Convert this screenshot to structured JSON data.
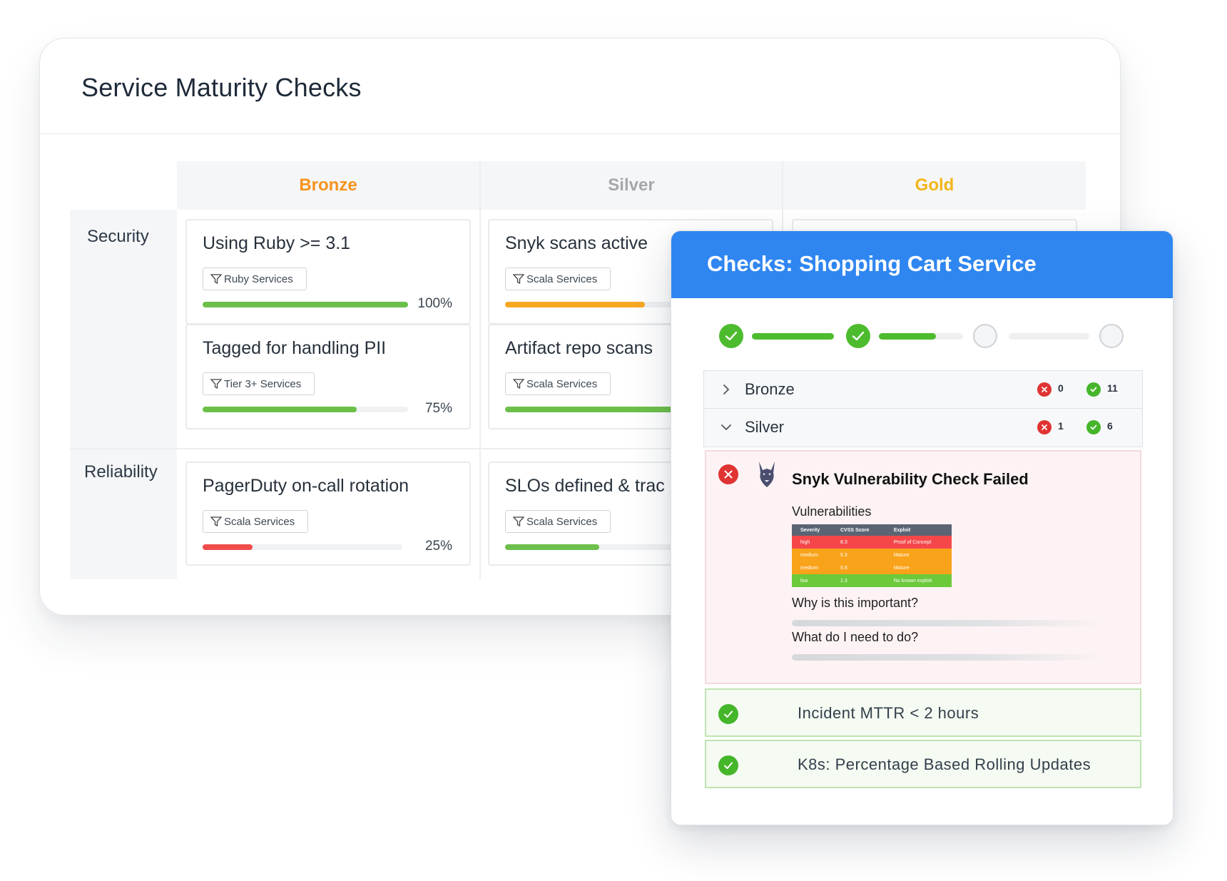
{
  "maturity": {
    "title": "Service Maturity Checks",
    "columns": [
      {
        "label": "Bronze",
        "color": "#f7931e"
      },
      {
        "label": "Silver",
        "color": "#a3a8ad"
      },
      {
        "label": "Gold",
        "color": "#f3b51a"
      }
    ],
    "rows": [
      {
        "label": "Security"
      },
      {
        "label": "Reliability"
      }
    ],
    "cards": [
      {
        "name": "Using Ruby >= 3.1",
        "filter": "Ruby Services",
        "progress": 1.0,
        "percent": "100%",
        "color": "#6cc04a"
      },
      {
        "name": "Tagged for handling PII",
        "filter": "Tier 3+ Services",
        "progress": 0.75,
        "percent": "75%",
        "color": "#6cc04a"
      },
      {
        "name": "PagerDuty on-call rotation",
        "filter": "Scala Services",
        "progress": 0.25,
        "percent": "25%",
        "color": "#f04c4c"
      },
      {
        "name": "Snyk scans active",
        "filter": "Scala Services",
        "progress": 0.68,
        "color": "#f7a823"
      },
      {
        "name": "Artifact repo scans",
        "filter": "Scala Services",
        "progress": 0.85,
        "color": "#6cc04a"
      },
      {
        "name": "SLOs defined & trac",
        "filter": "Scala Services",
        "progress": 0.46,
        "color": "#6cc04a"
      }
    ]
  },
  "panel": {
    "title": "Checks: Shopping Cart Service",
    "stepper": {
      "step1_complete": true,
      "step2_complete": true,
      "segment2_progress": 0.68
    },
    "tiers": [
      {
        "name": "Bronze",
        "failed": "0",
        "passed": "11",
        "expanded": false
      },
      {
        "name": "Silver",
        "failed": "1",
        "passed": "6",
        "expanded": true
      }
    ],
    "failed_check": {
      "title": "Snyk Vulnerability Check Failed",
      "vuln_label": "Vulnerabilities",
      "table": {
        "headers": [
          "Severity",
          "CVSS Score",
          "Exploit"
        ],
        "rows": [
          {
            "severity": "high",
            "score": "8.3",
            "exploit": "Proof of Concept",
            "color": "#f5474a"
          },
          {
            "severity": "medium",
            "score": "5.3",
            "exploit": "Mature",
            "color": "#f9a31a"
          },
          {
            "severity": "medium",
            "score": "5.8",
            "exploit": "Mature",
            "color": "#f9a31a"
          },
          {
            "severity": "low",
            "score": "1.3",
            "exploit": "No known exploit",
            "color": "#6cc93a"
          }
        ]
      },
      "question1": "Why is this important?",
      "question2": "What do I need to do?"
    },
    "passed_checks": [
      {
        "name": "Incident MTTR < 2 hours"
      },
      {
        "name": "K8s: Percentage Based Rolling Updates"
      }
    ]
  }
}
